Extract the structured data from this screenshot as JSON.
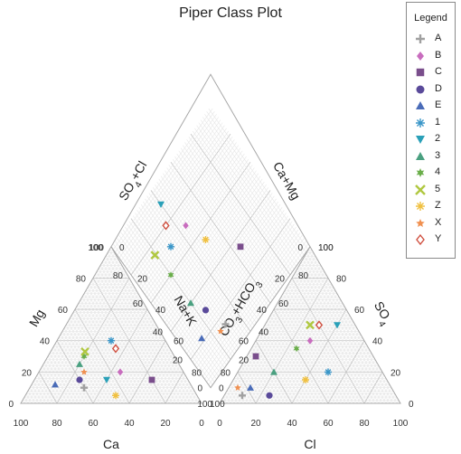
{
  "title": "Piper Class Plot",
  "legend": {
    "title": "Legend",
    "items": [
      {
        "label": "A",
        "marker": "plus",
        "color": "#a0a0a0"
      },
      {
        "label": "B",
        "marker": "diamond",
        "color": "#c86dbe"
      },
      {
        "label": "C",
        "marker": "square",
        "color": "#7a4e8c"
      },
      {
        "label": "D",
        "marker": "circle",
        "color": "#5a4a9a"
      },
      {
        "label": "E",
        "marker": "triangle-up",
        "color": "#4a6cb8"
      },
      {
        "label": "1",
        "marker": "asterisk",
        "color": "#3a96c8"
      },
      {
        "label": "2",
        "marker": "triangle-down",
        "color": "#2aa0b8"
      },
      {
        "label": "3",
        "marker": "triangle-up",
        "color": "#4aa080"
      },
      {
        "label": "4",
        "marker": "star6",
        "color": "#6aae4a"
      },
      {
        "label": "5",
        "marker": "x",
        "color": "#b0c840"
      },
      {
        "label": "Z",
        "marker": "asterisk",
        "color": "#f0c040"
      },
      {
        "label": "X",
        "marker": "star5",
        "color": "#f09050"
      },
      {
        "label": "Y",
        "marker": "diamond-open",
        "color": "#d05040"
      }
    ]
  },
  "chart_data": {
    "type": "scatter",
    "subtype": "piper",
    "title": "Piper Class Plot",
    "cation_triangle": {
      "axes": {
        "bottom": "Ca",
        "left": "Mg",
        "right": "Na+K"
      },
      "tick_labels": [
        "0",
        "20",
        "40",
        "60",
        "80",
        "100"
      ]
    },
    "anion_triangle": {
      "axes": {
        "bottom": "Cl",
        "left": "CO3+HCO3",
        "right": "SO4"
      },
      "tick_labels": [
        "0",
        "20",
        "40",
        "60",
        "80",
        "100"
      ]
    },
    "diamond": {
      "axes": {
        "upper_left": "SO4+Cl",
        "upper_right": "Ca+Mg"
      },
      "tick_labels": [
        "0",
        "20",
        "40",
        "60",
        "80",
        "100"
      ]
    },
    "series": [
      {
        "name": "A",
        "cation": {
          "Ca": 60,
          "Mg": 10,
          "NaK": 30
        },
        "anion": {
          "Cl": 10,
          "SO4": 5,
          "CO3HCO3": 85
        }
      },
      {
        "name": "B",
        "cation": {
          "Ca": 35,
          "Mg": 20,
          "NaK": 45
        },
        "anion": {
          "Cl": 30,
          "SO4": 40,
          "CO3HCO3": 30
        }
      },
      {
        "name": "C",
        "cation": {
          "Ca": 20,
          "Mg": 15,
          "NaK": 65
        },
        "anion": {
          "Cl": 5,
          "SO4": 30,
          "CO3HCO3": 65
        }
      },
      {
        "name": "D",
        "cation": {
          "Ca": 60,
          "Mg": 15,
          "NaK": 25
        },
        "anion": {
          "Cl": 25,
          "SO4": 5,
          "CO3HCO3": 70
        }
      },
      {
        "name": "E",
        "cation": {
          "Ca": 75,
          "Mg": 12,
          "NaK": 13
        },
        "anion": {
          "Cl": 12,
          "SO4": 10,
          "CO3HCO3": 78
        }
      },
      {
        "name": "1",
        "cation": {
          "Ca": 30,
          "Mg": 40,
          "NaK": 30
        },
        "anion": {
          "Cl": 50,
          "SO4": 20,
          "CO3HCO3": 30
        }
      },
      {
        "name": "2",
        "cation": {
          "Ca": 45,
          "Mg": 15,
          "NaK": 40
        },
        "anion": {
          "Cl": 40,
          "SO4": 50,
          "CO3HCO3": 10
        }
      },
      {
        "name": "3",
        "cation": {
          "Ca": 55,
          "Mg": 25,
          "NaK": 20
        },
        "anion": {
          "Cl": 20,
          "SO4": 20,
          "CO3HCO3": 60
        }
      },
      {
        "name": "4",
        "cation": {
          "Ca": 50,
          "Mg": 30,
          "NaK": 20
        },
        "anion": {
          "Cl": 25,
          "SO4": 35,
          "CO3HCO3": 40
        }
      },
      {
        "name": "5",
        "cation": {
          "Ca": 48,
          "Mg": 33,
          "NaK": 19
        },
        "anion": {
          "Cl": 25,
          "SO4": 50,
          "CO3HCO3": 25
        }
      },
      {
        "name": "Z",
        "cation": {
          "Ca": 45,
          "Mg": 5,
          "NaK": 50
        },
        "anion": {
          "Cl": 40,
          "SO4": 15,
          "CO3HCO3": 45
        }
      },
      {
        "name": "X",
        "cation": {
          "Ca": 55,
          "Mg": 20,
          "NaK": 25
        },
        "anion": {
          "Cl": 5,
          "SO4": 10,
          "CO3HCO3": 85
        }
      },
      {
        "name": "Y",
        "cation": {
          "Ca": 30,
          "Mg": 35,
          "NaK": 35
        },
        "anion": {
          "Cl": 30,
          "SO4": 50,
          "CO3HCO3": 20
        }
      }
    ]
  }
}
